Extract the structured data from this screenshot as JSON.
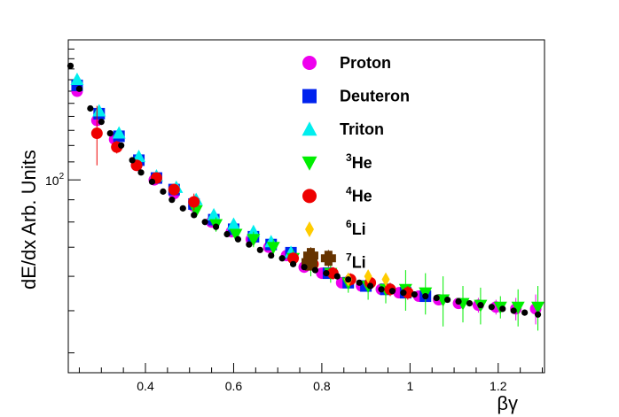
{
  "chart_data": {
    "type": "scatter",
    "xlabel": "βγ",
    "ylabel": "dE/dx Arb. Units",
    "xlim": [
      0.225,
      1.305
    ],
    "ylim": [
      36,
      210
    ],
    "yscale": "log",
    "x_ticks": [
      0.4,
      0.6,
      0.8,
      1,
      1.2
    ],
    "x_tick_labels": [
      "0.4",
      "0.6",
      "0.8",
      "1",
      "1.2"
    ],
    "y_ticks": [
      100
    ],
    "y_tick_labels": [
      "10",
      "2"
    ],
    "legend_position": "top-right",
    "reference": {
      "color": "#000000",
      "points": [
        [
          0.23,
          183
        ],
        [
          0.25,
          162
        ],
        [
          0.275,
          146
        ],
        [
          0.3,
          136
        ],
        [
          0.32,
          128
        ],
        [
          0.345,
          120
        ],
        [
          0.37,
          111
        ],
        [
          0.39,
          104
        ],
        [
          0.415,
          99
        ],
        [
          0.44,
          94
        ],
        [
          0.46,
          90
        ],
        [
          0.485,
          86
        ],
        [
          0.51,
          83
        ],
        [
          0.535,
          80
        ],
        [
          0.56,
          78
        ],
        [
          0.585,
          75
        ],
        [
          0.61,
          73
        ],
        [
          0.635,
          71
        ],
        [
          0.66,
          69
        ],
        [
          0.685,
          67
        ],
        [
          0.71,
          66
        ],
        [
          0.735,
          64
        ],
        [
          0.76,
          63
        ],
        [
          0.785,
          62
        ],
        [
          0.81,
          61
        ],
        [
          0.835,
          60
        ],
        [
          0.86,
          59
        ],
        [
          0.885,
          58
        ],
        [
          0.91,
          57
        ],
        [
          0.935,
          56
        ],
        [
          0.96,
          55.5
        ],
        [
          0.985,
          55
        ],
        [
          1.01,
          54.5
        ],
        [
          1.035,
          54
        ],
        [
          1.06,
          53.5
        ],
        [
          1.085,
          53
        ],
        [
          1.11,
          52.5
        ],
        [
          1.135,
          52
        ],
        [
          1.16,
          51.5
        ],
        [
          1.185,
          51
        ],
        [
          1.21,
          50.5
        ],
        [
          1.235,
          50
        ],
        [
          1.26,
          49.5
        ],
        [
          1.29,
          49
        ]
      ]
    },
    "series": [
      {
        "name": "Proton",
        "label_main": "Proton",
        "label_sup": "",
        "marker": "circle",
        "color": "#ee00ee",
        "points": [
          [
            0.245,
            160,
            0
          ],
          [
            0.29,
            137,
            0
          ],
          [
            0.33,
            124,
            0
          ],
          [
            0.38,
            108,
            0
          ],
          [
            0.42,
            100,
            0
          ],
          [
            0.465,
            93,
            0
          ],
          [
            0.51,
            87,
            0
          ],
          [
            0.55,
            80,
            0
          ],
          [
            0.595,
            76,
            0
          ],
          [
            0.64,
            73,
            0
          ],
          [
            0.68,
            70,
            0
          ],
          [
            0.72,
            67,
            0
          ],
          [
            0.76,
            63,
            0
          ],
          [
            0.8,
            61,
            0
          ],
          [
            0.845,
            58,
            0
          ],
          [
            0.89,
            57,
            0
          ],
          [
            0.935,
            56,
            0
          ],
          [
            0.975,
            55,
            0
          ],
          [
            1.02,
            54,
            0
          ],
          [
            1.065,
            53,
            0
          ],
          [
            1.11,
            52,
            0
          ],
          [
            1.155,
            51.5,
            2
          ],
          [
            1.195,
            51,
            2
          ],
          [
            1.24,
            50.5,
            3
          ],
          [
            1.285,
            50.5,
            4
          ]
        ]
      },
      {
        "name": "Deuteron",
        "label_main": "Deuteron",
        "label_sup": "",
        "marker": "square",
        "color": "#0022ee",
        "points": [
          [
            0.245,
            165,
            0
          ],
          [
            0.295,
            142,
            0
          ],
          [
            0.34,
            126,
            0
          ],
          [
            0.385,
            111,
            0
          ],
          [
            0.425,
            101,
            0
          ],
          [
            0.465,
            95,
            0
          ],
          [
            0.51,
            88,
            0
          ],
          [
            0.555,
            81,
            0
          ],
          [
            0.6,
            77,
            0
          ],
          [
            0.645,
            74,
            0
          ],
          [
            0.685,
            71,
            0
          ],
          [
            0.73,
            68,
            0
          ],
          [
            0.775,
            65,
            0
          ],
          [
            0.815,
            61,
            0
          ],
          [
            0.86,
            58,
            0
          ],
          [
            0.9,
            57,
            0
          ],
          [
            0.945,
            56,
            0
          ],
          [
            0.99,
            55,
            0
          ],
          [
            1.035,
            54,
            0
          ]
        ]
      },
      {
        "name": "Triton",
        "label_main": "Triton",
        "label_sup": "",
        "marker": "triangle-up",
        "color": "#00eeee",
        "points": [
          [
            0.245,
            170,
            0
          ],
          [
            0.295,
            144,
            0
          ],
          [
            0.34,
            128,
            0
          ],
          [
            0.385,
            113,
            0
          ],
          [
            0.425,
            102,
            0
          ],
          [
            0.47,
            96,
            0
          ],
          [
            0.515,
            90,
            0
          ],
          [
            0.555,
            83,
            0
          ],
          [
            0.6,
            79,
            0
          ],
          [
            0.645,
            76,
            0
          ],
          [
            0.685,
            72,
            0
          ],
          [
            0.73,
            68,
            0
          ],
          [
            0.775,
            65,
            0
          ]
        ]
      },
      {
        "name": "3He",
        "label_main": "He",
        "label_sup": "3",
        "marker": "triangle-down",
        "color": "#00ee00",
        "points": [
          [
            0.515,
            85,
            3
          ],
          [
            0.56,
            79,
            3
          ],
          [
            0.605,
            75,
            2
          ],
          [
            0.645,
            73,
            3
          ],
          [
            0.69,
            70,
            3
          ],
          [
            0.735,
            66,
            3
          ],
          [
            0.775,
            64,
            4
          ],
          [
            0.82,
            61,
            3
          ],
          [
            0.86,
            58,
            3
          ],
          [
            0.905,
            57,
            4
          ],
          [
            0.945,
            56,
            4
          ],
          [
            0.99,
            56,
            6
          ],
          [
            1.035,
            55,
            6
          ],
          [
            1.075,
            53,
            7
          ],
          [
            1.12,
            52,
            5
          ],
          [
            1.16,
            51.5,
            5
          ],
          [
            1.205,
            51,
            3
          ],
          [
            1.245,
            51,
            5
          ],
          [
            1.29,
            51,
            6
          ]
        ]
      },
      {
        "name": "4He",
        "label_main": "He",
        "label_sup": "4",
        "marker": "circle",
        "color": "#ee0000",
        "points": [
          [
            0.29,
            128,
            20
          ],
          [
            0.335,
            119,
            4
          ],
          [
            0.38,
            108,
            3
          ],
          [
            0.425,
            101,
            3
          ],
          [
            0.465,
            95,
            3
          ],
          [
            0.51,
            89,
            4
          ],
          [
            0.735,
            66,
            2
          ],
          [
            0.78,
            64,
            2
          ],
          [
            0.825,
            61,
            2
          ],
          [
            0.865,
            59,
            2
          ],
          [
            0.91,
            58,
            2
          ],
          [
            0.955,
            56,
            2
          ],
          [
            0.995,
            55,
            2
          ]
        ]
      },
      {
        "name": "6Li",
        "label_main": "Li",
        "label_sup": "6",
        "marker": "diamond",
        "color": "#ffcc00",
        "points": [
          [
            0.86,
            59,
            2
          ],
          [
            0.905,
            60,
            2
          ],
          [
            0.945,
            59,
            2
          ]
        ]
      },
      {
        "name": "7Li",
        "label_main": "Li",
        "label_sup": "7",
        "marker": "cross",
        "color": "#663300",
        "points": [
          [
            0.775,
            67,
            3
          ],
          [
            0.815,
            66,
            3
          ]
        ]
      }
    ]
  }
}
